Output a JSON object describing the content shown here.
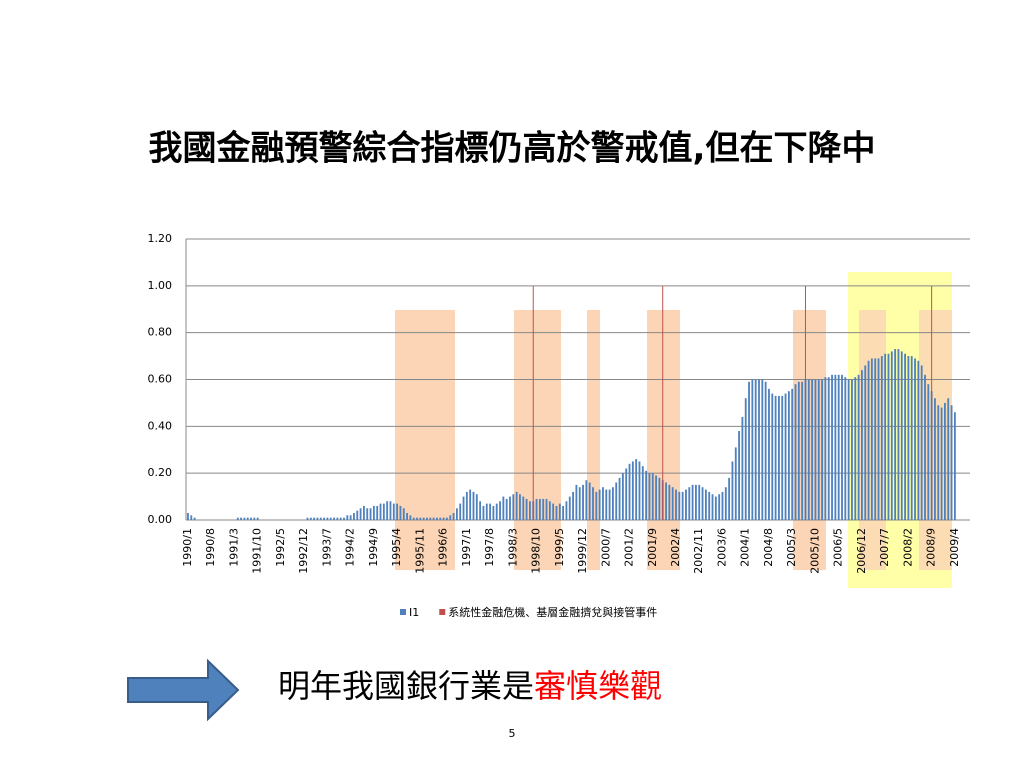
{
  "slide_title": "我國金融預警綜合指標仍高於警戒值,但在下降中",
  "conclusion": {
    "text": "明年我國銀行業是",
    "highlight": "審慎樂觀"
  },
  "page_number": "5",
  "chart_data": {
    "type": "bar",
    "categories": [
      "1990/1",
      null,
      null,
      null,
      null,
      null,
      null,
      "1990/8",
      null,
      null,
      null,
      null,
      null,
      null,
      "1991/3",
      null,
      null,
      null,
      null,
      null,
      null,
      "1991/10",
      null,
      null,
      null,
      null,
      null,
      null,
      "1992/5",
      null,
      null,
      null,
      null,
      null,
      null,
      "1992/12",
      null,
      null,
      null,
      null,
      null,
      null,
      "1993/7",
      null,
      null,
      null,
      null,
      null,
      null,
      "1994/2",
      null,
      null,
      null,
      null,
      null,
      null,
      "1994/9",
      null,
      null,
      null,
      null,
      null,
      null,
      "1995/4",
      null,
      null,
      null,
      null,
      null,
      null,
      "1995/11",
      null,
      null,
      null,
      null,
      null,
      null,
      "1996/6",
      null,
      null,
      null,
      null,
      null,
      null,
      "1997/1",
      null,
      null,
      null,
      null,
      null,
      null,
      "1997/8",
      null,
      null,
      null,
      null,
      null,
      null,
      "1998/3",
      null,
      null,
      null,
      null,
      null,
      null,
      "1998/10",
      null,
      null,
      null,
      null,
      null,
      null,
      "1999/5",
      null,
      null,
      null,
      null,
      null,
      null,
      "1999/12",
      null,
      null,
      null,
      null,
      null,
      null,
      "2000/7",
      null,
      null,
      null,
      null,
      null,
      null,
      "2001/2",
      null,
      null,
      null,
      null,
      null,
      null,
      "2001/9",
      null,
      null,
      null,
      null,
      null,
      null,
      "2002/4",
      null,
      null,
      null,
      null,
      null,
      null,
      "2002/11",
      null,
      null,
      null,
      null,
      null,
      null,
      "2003/6",
      null,
      null,
      null,
      null,
      null,
      null,
      "2004/1",
      null,
      null,
      null,
      null,
      null,
      null,
      "2004/8",
      null,
      null,
      null,
      null,
      null,
      null,
      "2005/3",
      null,
      null,
      null,
      null,
      null,
      null,
      "2005/10",
      null,
      null,
      null,
      null,
      null,
      null,
      "2006/5",
      null,
      null,
      null,
      null,
      null,
      null,
      "2006/12",
      null,
      null,
      null,
      null,
      null,
      null,
      "2007/7",
      null,
      null,
      null,
      null,
      null,
      null,
      "2008/2",
      null,
      null,
      null,
      null,
      null,
      null,
      "2008/9",
      null,
      null,
      null,
      null,
      null,
      null,
      "2009/4"
    ],
    "series": [
      {
        "name": "I1",
        "color": "#4f81bd",
        "values": [
          0.03,
          0.02,
          0.01,
          0,
          0,
          0,
          0,
          0,
          0,
          0,
          0,
          0,
          0,
          0,
          0,
          0.01,
          0.01,
          0.01,
          0.01,
          0.01,
          0.01,
          0.01,
          0,
          0,
          0,
          0,
          0,
          0,
          0,
          0,
          0,
          0,
          0,
          0,
          0,
          0,
          0.01,
          0.01,
          0.01,
          0.01,
          0.01,
          0.01,
          0.01,
          0.01,
          0.01,
          0.01,
          0.01,
          0.01,
          0.02,
          0.02,
          0.03,
          0.04,
          0.05,
          0.06,
          0.05,
          0.05,
          0.06,
          0.06,
          0.07,
          0.07,
          0.08,
          0.08,
          0.07,
          0.07,
          0.06,
          0.05,
          0.03,
          0.02,
          0.01,
          0.01,
          0.01,
          0.01,
          0.01,
          0.01,
          0.01,
          0.01,
          0.01,
          0.01,
          0.01,
          0.02,
          0.03,
          0.05,
          0.07,
          0.1,
          0.12,
          0.13,
          0.12,
          0.11,
          0.08,
          0.06,
          0.07,
          0.07,
          0.06,
          0.07,
          0.08,
          0.1,
          0.09,
          0.1,
          0.11,
          0.12,
          0.11,
          0.1,
          0.09,
          0.08,
          0.08,
          0.09,
          0.09,
          0.09,
          0.09,
          0.08,
          0.07,
          0.06,
          0.07,
          0.06,
          0.08,
          0.1,
          0.12,
          0.15,
          0.14,
          0.15,
          0.17,
          0.16,
          0.14,
          0.12,
          0.13,
          0.14,
          0.13,
          0.13,
          0.14,
          0.16,
          0.18,
          0.2,
          0.22,
          0.24,
          0.25,
          0.26,
          0.25,
          0.23,
          0.21,
          0.2,
          0.2,
          0.19,
          0.18,
          0.17,
          0.16,
          0.15,
          0.14,
          0.13,
          0.12,
          0.12,
          0.13,
          0.14,
          0.15,
          0.15,
          0.15,
          0.14,
          0.13,
          0.12,
          0.11,
          0.1,
          0.11,
          0.12,
          0.14,
          0.18,
          0.25,
          0.31,
          0.38,
          0.44,
          0.52,
          0.59,
          0.6,
          0.6,
          0.6,
          0.6,
          0.59,
          0.56,
          0.54,
          0.53,
          0.53,
          0.53,
          0.54,
          0.55,
          0.56,
          0.58,
          0.59,
          0.59,
          0.6,
          0.6,
          0.6,
          0.6,
          0.6,
          0.6,
          0.61,
          0.61,
          0.62,
          0.62,
          0.62,
          0.62,
          0.61,
          0.6,
          0.6,
          0.61,
          0.62,
          0.64,
          0.66,
          0.68,
          0.69,
          0.69,
          0.69,
          0.7,
          0.71,
          0.71,
          0.72,
          0.73,
          0.73,
          0.72,
          0.71,
          0.7,
          0.7,
          0.69,
          0.68,
          0.66,
          0.62,
          0.58,
          0.55,
          0.52,
          0.49,
          0.48,
          0.5,
          0.52,
          0.49,
          0.46
        ]
      },
      {
        "name": "系統性金融危機、基層金融擠兌與接管事件",
        "color": "#c0504d",
        "values": [
          null,
          null,
          null,
          null,
          null,
          null,
          null,
          null,
          null,
          null,
          null,
          null,
          null,
          null,
          null,
          null,
          null,
          null,
          null,
          null,
          null,
          null,
          null,
          null,
          null,
          null,
          null,
          null,
          null,
          null,
          null,
          null,
          null,
          null,
          null,
          null,
          null,
          null,
          null,
          null,
          null,
          null,
          null,
          null,
          null,
          null,
          null,
          null,
          null,
          null,
          null,
          null,
          null,
          null,
          null,
          null,
          null,
          null,
          null,
          null,
          null,
          null,
          null,
          null,
          null,
          null,
          null,
          null,
          null,
          null,
          null,
          null,
          null,
          null,
          null,
          null,
          null,
          null,
          null,
          null,
          null,
          null,
          null,
          null,
          null,
          null,
          null,
          null,
          null,
          null,
          null,
          null,
          null,
          null,
          null,
          null,
          null,
          null,
          null,
          null,
          null,
          null,
          null,
          null,
          1,
          null,
          null,
          null,
          null,
          null,
          null,
          null,
          null,
          null,
          null,
          null,
          null,
          null,
          null,
          null,
          null,
          null,
          null,
          null,
          null,
          null,
          null,
          null,
          null,
          null,
          null,
          null,
          null,
          null,
          null,
          null,
          null,
          null,
          null,
          null,
          null,
          null,
          null,
          1,
          null,
          null,
          null,
          null,
          null,
          null,
          null,
          null,
          null,
          null,
          null,
          null,
          null,
          null,
          null,
          null,
          null,
          null,
          null,
          null,
          null,
          null,
          null,
          null,
          null,
          null,
          null,
          null,
          null,
          null,
          null,
          null,
          null,
          null,
          null,
          null,
          null,
          null,
          null,
          null,
          null,
          null,
          1,
          null,
          null,
          null,
          null,
          null,
          null,
          null,
          null,
          null,
          null,
          null,
          null,
          null,
          null,
          null,
          null,
          null,
          null,
          null,
          null,
          null,
          null,
          null,
          null,
          null,
          null,
          null,
          null,
          null,
          null,
          null,
          null,
          null,
          null,
          null,
          null,
          null,
          1,
          null,
          null,
          null,
          null,
          null,
          null,
          null
        ]
      }
    ],
    "ylim": [
      0,
      1.2
    ],
    "yticks": [
      {
        "value": 0,
        "label": "0.00"
      },
      {
        "value": 0.2,
        "label": "0.20"
      },
      {
        "value": 0.4,
        "label": "0.40"
      },
      {
        "value": 0.6,
        "label": "0.60"
      },
      {
        "value": 0.8,
        "label": "0.80"
      },
      {
        "value": 1,
        "label": "1.00"
      },
      {
        "value": 1.2,
        "label": "1.20"
      }
    ],
    "grid": true,
    "legend": "bottom"
  }
}
